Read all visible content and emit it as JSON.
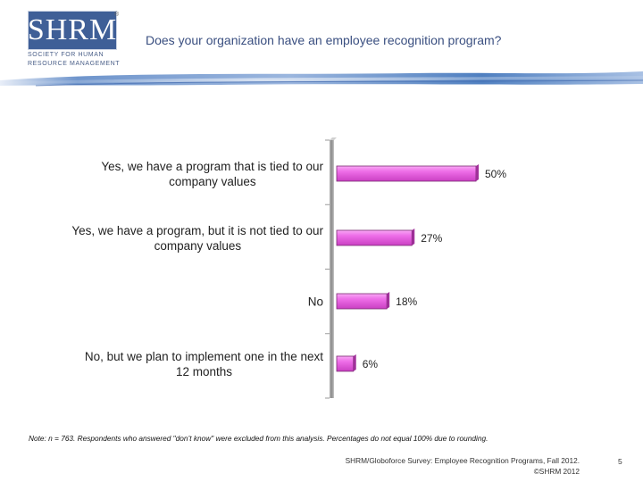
{
  "header": {
    "logo": {
      "wordmark": "SHRM",
      "registered": "®",
      "line1": "SOCIETY FOR HUMAN",
      "line2": "RESOURCE MANAGEMENT"
    },
    "title": "Does your organization have an employee recognition program?"
  },
  "colors": {
    "bar": "#e85fe0",
    "bar_edge": "#7a2a73",
    "axis": "#8a8a8a",
    "logo_blue": "#3f5f97",
    "band_blue": "#5b86c4"
  },
  "chart_data": {
    "type": "bar",
    "orientation": "horizontal",
    "categories": [
      [
        "Yes, we have a program that is tied  to our",
        "company values"
      ],
      [
        "Yes, we have a program, but it is not tied to our",
        "company values"
      ],
      [
        "No"
      ],
      [
        "No, but we plan to implement one in the next",
        "12 months"
      ]
    ],
    "values": [
      50,
      27,
      18,
      6
    ],
    "value_labels": [
      "50%",
      "27%",
      "18%",
      "6%"
    ],
    "unit": "%",
    "xlim": [
      0,
      100
    ],
    "grid": false,
    "legend": "none"
  },
  "footer": {
    "note": "Note: n = 763. Respondents who answered \"don’t know\" were excluded from this analysis. Percentages do not equal 100% due to rounding.",
    "source_line1": "SHRM/Globoforce Survey: Employee Recognition Programs, Fall 2012.",
    "source_line2": "©SHRM 2012",
    "page_number": "5"
  }
}
